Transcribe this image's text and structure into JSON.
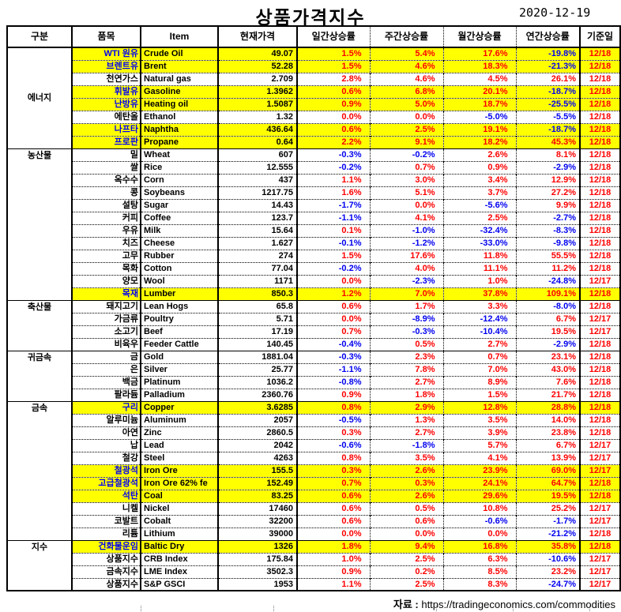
{
  "title": "상품가격지수",
  "report_date": "2020-12-19",
  "source": {
    "label": "자료 : ",
    "url": "https://tradingeconomics.com/commodities"
  },
  "colors": {
    "highlight": "#ffff00",
    "up": "#ff0000",
    "down": "#0000f0",
    "highlight_item_text": "#0000f0"
  },
  "columns": [
    "구분",
    "품목",
    "Item",
    "현재가격",
    "일간상승률",
    "주간상승률",
    "월간상승률",
    "연간상승률",
    "기준일"
  ],
  "groups": [
    {
      "category": "에너지",
      "va": "middle",
      "rows": [
        {
          "kr": "WTI 원유",
          "en": "Crude Oil",
          "price": "49.07",
          "d": "1.5%",
          "w": "5.4%",
          "m": "17.6%",
          "y": "-19.8%",
          "date": "12/18",
          "hl": true
        },
        {
          "kr": "브렌트유",
          "en": "Brent",
          "price": "52.28",
          "d": "1.5%",
          "w": "4.6%",
          "m": "18.3%",
          "y": "-21.3%",
          "date": "12/18",
          "hl": true
        },
        {
          "kr": "천연가스",
          "en": "Natural gas",
          "price": "2.709",
          "d": "2.8%",
          "w": "4.6%",
          "m": "4.5%",
          "y": "26.1%",
          "date": "12/18",
          "hl": false
        },
        {
          "kr": "휘발유",
          "en": "Gasoline",
          "price": "1.3962",
          "d": "0.6%",
          "w": "6.8%",
          "m": "20.1%",
          "y": "-18.7%",
          "date": "12/18",
          "hl": true
        },
        {
          "kr": "난방유",
          "en": "Heating oil",
          "price": "1.5087",
          "d": "0.9%",
          "w": "5.0%",
          "m": "18.7%",
          "y": "-25.5%",
          "date": "12/18",
          "hl": true
        },
        {
          "kr": "에탄올",
          "en": "Ethanol",
          "price": "1.32",
          "d": "0.0%",
          "w": "0.0%",
          "m": "-5.0%",
          "y": "-5.5%",
          "date": "12/18",
          "hl": false
        },
        {
          "kr": "나프타",
          "en": "Naphtha",
          "price": "436.64",
          "d": "0.6%",
          "w": "2.5%",
          "m": "19.1%",
          "y": "-18.7%",
          "date": "12/18",
          "hl": true
        },
        {
          "kr": "프로판",
          "en": "Propane",
          "price": "0.64",
          "d": "2.2%",
          "w": "9.1%",
          "m": "18.2%",
          "y": "45.3%",
          "date": "12/18",
          "hl": true
        }
      ]
    },
    {
      "category": "농산물",
      "va": "top",
      "rows": [
        {
          "kr": "밀",
          "en": "Wheat",
          "price": "607",
          "d": "-0.3%",
          "w": "-0.2%",
          "m": "2.6%",
          "y": "8.1%",
          "date": "12/18",
          "hl": false
        },
        {
          "kr": "쌀",
          "en": "Rice",
          "price": "12.555",
          "d": "-0.2%",
          "w": "0.7%",
          "m": "0.9%",
          "y": "-2.9%",
          "date": "12/18",
          "hl": false
        },
        {
          "kr": "옥수수",
          "en": "Corn",
          "price": "437",
          "d": "1.1%",
          "w": "3.0%",
          "m": "3.4%",
          "y": "12.9%",
          "date": "12/18",
          "hl": false
        },
        {
          "kr": "콩",
          "en": "Soybeans",
          "price": "1217.75",
          "d": "1.6%",
          "w": "5.1%",
          "m": "3.7%",
          "y": "27.2%",
          "date": "12/18",
          "hl": false
        },
        {
          "kr": "설탕",
          "en": "Sugar",
          "price": "14.43",
          "d": "-1.7%",
          "w": "0.0%",
          "m": "-5.6%",
          "y": "9.9%",
          "date": "12/18",
          "hl": false
        },
        {
          "kr": "커피",
          "en": "Coffee",
          "price": "123.7",
          "d": "-1.1%",
          "w": "4.1%",
          "m": "2.5%",
          "y": "-2.7%",
          "date": "12/18",
          "hl": false
        },
        {
          "kr": "우유",
          "en": "Milk",
          "price": "15.64",
          "d": "0.1%",
          "w": "-1.0%",
          "m": "-32.4%",
          "y": "-8.3%",
          "date": "12/18",
          "hl": false
        },
        {
          "kr": "치즈",
          "en": "Cheese",
          "price": "1.627",
          "d": "-0.1%",
          "w": "-1.2%",
          "m": "-33.0%",
          "y": "-9.8%",
          "date": "12/18",
          "hl": false
        },
        {
          "kr": "고무",
          "en": "Rubber",
          "price": "274",
          "d": "1.5%",
          "w": "17.6%",
          "m": "11.8%",
          "y": "55.5%",
          "date": "12/18",
          "hl": false
        },
        {
          "kr": "목화",
          "en": "Cotton",
          "price": "77.04",
          "d": "-0.2%",
          "w": "4.0%",
          "m": "11.1%",
          "y": "11.2%",
          "date": "12/18",
          "hl": false
        },
        {
          "kr": "양모",
          "en": "Wool",
          "price": "1171",
          "d": "0.0%",
          "w": "-2.3%",
          "m": "1.0%",
          "y": "-24.8%",
          "date": "12/17",
          "hl": false
        },
        {
          "kr": "목재",
          "en": "Lumber",
          "price": "850.3",
          "d": "1.2%",
          "w": "7.0%",
          "m": "37.8%",
          "y": "109.1%",
          "date": "12/18",
          "hl": true
        }
      ]
    },
    {
      "category": "축산물",
      "va": "top",
      "rows": [
        {
          "kr": "돼지고기",
          "en": "Lean Hogs",
          "price": "65.8",
          "d": "0.6%",
          "w": "1.7%",
          "m": "3.3%",
          "y": "-8.0%",
          "date": "12/18",
          "hl": false
        },
        {
          "kr": "가금류",
          "en": "Poultry",
          "price": "5.71",
          "d": "0.0%",
          "w": "-8.9%",
          "m": "-12.4%",
          "y": "6.7%",
          "date": "12/17",
          "hl": false
        },
        {
          "kr": "소고기",
          "en": "Beef",
          "price": "17.19",
          "d": "0.7%",
          "w": "-0.3%",
          "m": "-10.4%",
          "y": "19.5%",
          "date": "12/17",
          "hl": false
        },
        {
          "kr": "비육우",
          "en": "Feeder Cattle",
          "price": "140.45",
          "d": "-0.4%",
          "w": "0.5%",
          "m": "2.7%",
          "y": "-2.9%",
          "date": "12/18",
          "hl": false
        }
      ]
    },
    {
      "category": "귀금속",
      "va": "top",
      "rows": [
        {
          "kr": "금",
          "en": "Gold",
          "price": "1881.04",
          "d": "-0.3%",
          "w": "2.3%",
          "m": "0.7%",
          "y": "23.1%",
          "date": "12/18",
          "hl": false
        },
        {
          "kr": "은",
          "en": "Silver",
          "price": "25.77",
          "d": "-1.1%",
          "w": "7.8%",
          "m": "7.0%",
          "y": "43.0%",
          "date": "12/18",
          "hl": false
        },
        {
          "kr": "백금",
          "en": "Platinum",
          "price": "1036.2",
          "d": "-0.8%",
          "w": "2.7%",
          "m": "8.9%",
          "y": "7.6%",
          "date": "12/18",
          "hl": false
        },
        {
          "kr": "팔라듐",
          "en": "Palladium",
          "price": "2360.76",
          "d": "0.9%",
          "w": "1.8%",
          "m": "1.5%",
          "y": "21.7%",
          "date": "12/18",
          "hl": false
        }
      ]
    },
    {
      "category": "금속",
      "va": "top",
      "rows": [
        {
          "kr": "구리",
          "en": "Copper",
          "price": "3.6285",
          "d": "0.8%",
          "w": "2.9%",
          "m": "12.8%",
          "y": "28.8%",
          "date": "12/18",
          "hl": true
        },
        {
          "kr": "알루미늄",
          "en": "Aluminum",
          "price": "2057",
          "d": "-0.5%",
          "w": "1.3%",
          "m": "3.5%",
          "y": "14.0%",
          "date": "12/18",
          "hl": false
        },
        {
          "kr": "아연",
          "en": "Zinc",
          "price": "2860.5",
          "d": "0.3%",
          "w": "2.7%",
          "m": "3.9%",
          "y": "23.8%",
          "date": "12/18",
          "hl": false
        },
        {
          "kr": "납",
          "en": "Lead",
          "price": "2042",
          "d": "-0.6%",
          "w": "-1.8%",
          "m": "5.7%",
          "y": "6.7%",
          "date": "12/17",
          "hl": false
        },
        {
          "kr": "철강",
          "en": "Steel",
          "price": "4263",
          "d": "0.8%",
          "w": "3.5%",
          "m": "4.1%",
          "y": "13.9%",
          "date": "12/17",
          "hl": false
        },
        {
          "kr": "철광석",
          "en": "Iron Ore",
          "price": "155.5",
          "d": "0.3%",
          "w": "2.6%",
          "m": "23.9%",
          "y": "69.0%",
          "date": "12/17",
          "hl": true
        },
        {
          "kr": "고급철광석",
          "en": "Iron Ore 62% fe",
          "price": "152.49",
          "d": "0.7%",
          "w": "0.3%",
          "m": "24.1%",
          "y": "64.7%",
          "date": "12/18",
          "hl": true
        },
        {
          "kr": "석탄",
          "en": "Coal",
          "price": "83.25",
          "d": "0.6%",
          "w": "2.6%",
          "m": "29.6%",
          "y": "19.5%",
          "date": "12/18",
          "hl": true
        },
        {
          "kr": "니켈",
          "en": "Nickel",
          "price": "17460",
          "d": "0.6%",
          "w": "0.5%",
          "m": "10.8%",
          "y": "25.2%",
          "date": "12/17",
          "hl": false
        },
        {
          "kr": "코발트",
          "en": "Cobalt",
          "price": "32200",
          "d": "0.6%",
          "w": "0.6%",
          "m": "-0.6%",
          "y": "-1.7%",
          "date": "12/17",
          "hl": false
        },
        {
          "kr": "리튬",
          "en": "Lithium",
          "price": "39000",
          "d": "0.0%",
          "w": "0.0%",
          "m": "0.0%",
          "y": "-21.2%",
          "date": "12/18",
          "hl": false
        }
      ]
    },
    {
      "category": "지수",
      "va": "top",
      "rows": [
        {
          "kr": "건화물운임",
          "en": "Baltic Dry",
          "price": "1326",
          "d": "1.8%",
          "w": "9.4%",
          "m": "16.8%",
          "y": "35.8%",
          "date": "12/18",
          "hl": true
        },
        {
          "kr": "상품지수",
          "en": "CRB Index",
          "price": "175.84",
          "d": "1.0%",
          "w": "2.5%",
          "m": "6.3%",
          "y": "-10.6%",
          "date": "12/17",
          "hl": false
        },
        {
          "kr": "금속지수",
          "en": "LME Index",
          "price": "3502.3",
          "d": "0.9%",
          "w": "0.2%",
          "m": "8.5%",
          "y": "23.2%",
          "date": "12/17",
          "hl": false
        },
        {
          "kr": "상품지수",
          "en": "S&P GSCI",
          "price": "1953",
          "d": "1.1%",
          "w": "2.5%",
          "m": "8.3%",
          "y": "-24.7%",
          "date": "12/17",
          "hl": false
        }
      ]
    }
  ]
}
